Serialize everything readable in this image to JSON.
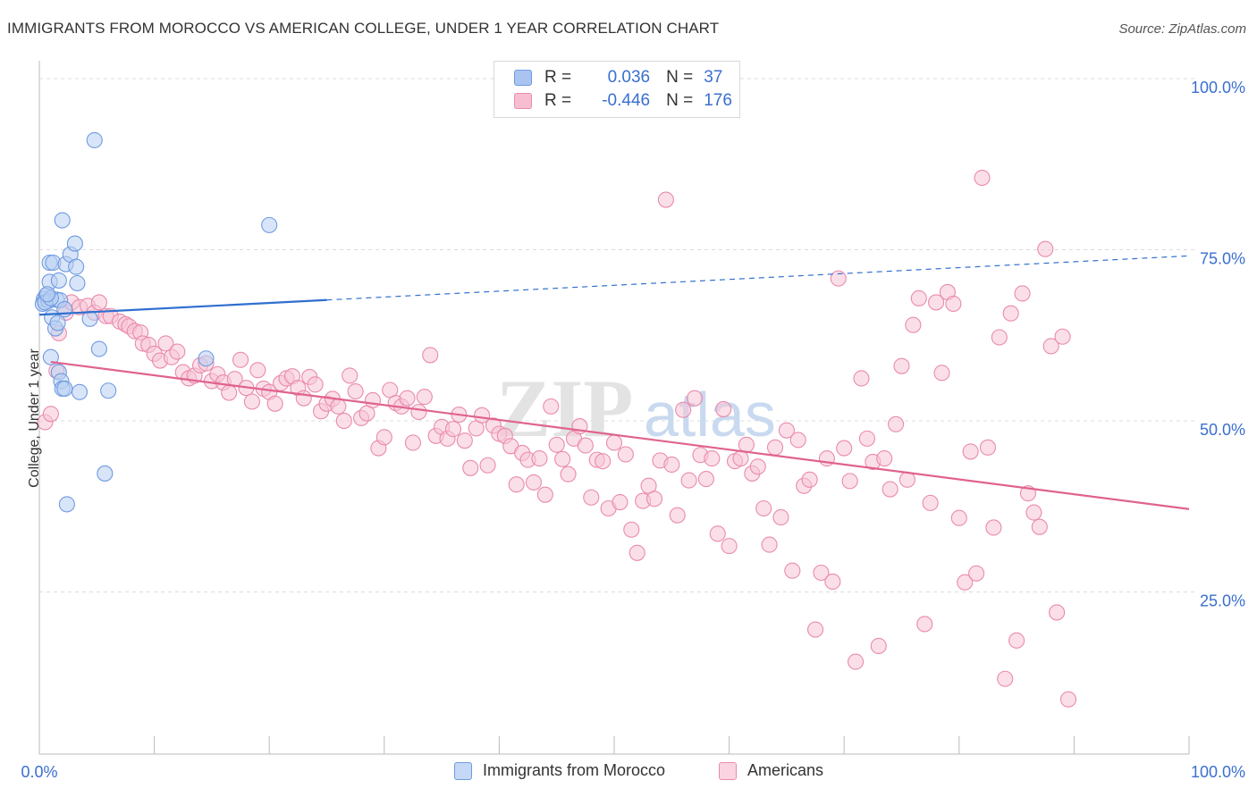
{
  "header": {
    "title": "IMMIGRANTS FROM MOROCCO VS AMERICAN COLLEGE, UNDER 1 YEAR CORRELATION CHART",
    "source": "Source: ZipAtlas.com"
  },
  "watermark": {
    "zip": "ZIP",
    "atlas": "atlas"
  },
  "legend": {
    "rows": [
      {
        "r_label": "R =",
        "r_value": "0.036",
        "n_label": "N =",
        "n_value": "37",
        "color": "#a9c4f0",
        "border": "#6f9ae0"
      },
      {
        "r_label": "R =",
        "r_value": "-0.446",
        "n_label": "N =",
        "n_value": "176",
        "color": "#f7bed2",
        "border": "#e98aae"
      }
    ]
  },
  "bottom_legend": [
    {
      "label": "Immigrants from Morocco",
      "color": "#c5d8f6",
      "border": "#6f9ae0"
    },
    {
      "label": "Americans",
      "color": "#fbd3e1",
      "border": "#e98aae"
    }
  ],
  "chart_data": {
    "type": "scatter",
    "xlabel": "",
    "ylabel": "College, Under 1 year",
    "xlim": [
      0,
      100
    ],
    "ylim": [
      0,
      100
    ],
    "x_tick_labels": [
      "0.0%",
      "100.0%"
    ],
    "y_tick_labels": [
      "25.0%",
      "50.0%",
      "75.0%",
      "100.0%"
    ],
    "y_ticks": [
      25,
      50,
      75,
      100
    ],
    "grid": true,
    "series": [
      {
        "name": "Immigrants from Morocco",
        "color": "#6f9ae0",
        "fill": "#b8cff3",
        "trend_color": "#2f6fcf",
        "trend": {
          "x0": 0.0,
          "y0": 64.2,
          "x1": 100.0,
          "y1": 72.8,
          "solid_until": 25.0
        },
        "points": [
          [
            0.4,
            66.5
          ],
          [
            0.6,
            67.0
          ],
          [
            0.3,
            65.8
          ],
          [
            0.8,
            66.2
          ],
          [
            0.9,
            71.8
          ],
          [
            1.2,
            71.8
          ],
          [
            0.9,
            69.0
          ],
          [
            1.1,
            63.8
          ],
          [
            1.5,
            66.4
          ],
          [
            1.4,
            62.2
          ],
          [
            1.7,
            69.2
          ],
          [
            1.8,
            66.3
          ],
          [
            2.0,
            78.0
          ],
          [
            2.2,
            65.0
          ],
          [
            2.3,
            71.6
          ],
          [
            2.7,
            73.0
          ],
          [
            3.2,
            71.2
          ],
          [
            3.1,
            74.6
          ],
          [
            3.3,
            68.8
          ],
          [
            1.7,
            55.8
          ],
          [
            1.9,
            54.5
          ],
          [
            2.0,
            53.4
          ],
          [
            2.2,
            53.4
          ],
          [
            1.0,
            58.0
          ],
          [
            3.5,
            52.9
          ],
          [
            4.4,
            63.6
          ],
          [
            5.2,
            59.2
          ],
          [
            4.8,
            89.7
          ],
          [
            5.7,
            41.0
          ],
          [
            6.0,
            53.1
          ],
          [
            2.4,
            36.5
          ],
          [
            14.5,
            57.8
          ],
          [
            20.0,
            77.3
          ],
          [
            0.5,
            66.0
          ],
          [
            1.0,
            66.6
          ],
          [
            1.6,
            63.0
          ],
          [
            0.7,
            67.2
          ]
        ]
      },
      {
        "name": "Americans",
        "color": "#e98aae",
        "fill": "#f7c4d6",
        "trend_color": "#e0628f",
        "trend": {
          "x0": 1.0,
          "y0": 57.3,
          "x1": 100.0,
          "y1": 35.8
        },
        "points": [
          [
            0.5,
            48.5
          ],
          [
            1.0,
            49.7
          ],
          [
            1.5,
            56.0
          ],
          [
            1.7,
            61.5
          ],
          [
            2.3,
            64.5
          ],
          [
            2.8,
            66.0
          ],
          [
            3.5,
            65.3
          ],
          [
            4.2,
            65.5
          ],
          [
            4.8,
            64.5
          ],
          [
            5.2,
            66.0
          ],
          [
            5.8,
            64.0
          ],
          [
            6.2,
            64.0
          ],
          [
            7.0,
            63.2
          ],
          [
            7.5,
            62.8
          ],
          [
            7.8,
            62.5
          ],
          [
            8.3,
            61.8
          ],
          [
            8.8,
            61.6
          ],
          [
            9.0,
            60.0
          ],
          [
            9.5,
            59.8
          ],
          [
            10.0,
            58.5
          ],
          [
            10.5,
            57.5
          ],
          [
            11.0,
            60.0
          ],
          [
            11.5,
            58.0
          ],
          [
            12.0,
            58.8
          ],
          [
            12.5,
            55.8
          ],
          [
            13.0,
            54.9
          ],
          [
            13.5,
            55.3
          ],
          [
            14.0,
            56.8
          ],
          [
            14.5,
            57.1
          ],
          [
            15.0,
            54.5
          ],
          [
            15.5,
            55.5
          ],
          [
            16.0,
            54.3
          ],
          [
            16.5,
            52.8
          ],
          [
            17.0,
            54.8
          ],
          [
            17.5,
            57.6
          ],
          [
            18.0,
            53.5
          ],
          [
            18.5,
            51.5
          ],
          [
            19.0,
            56.1
          ],
          [
            19.5,
            53.4
          ],
          [
            20.0,
            52.9
          ],
          [
            20.5,
            51.2
          ],
          [
            21.0,
            54.2
          ],
          [
            21.5,
            54.9
          ],
          [
            22.0,
            55.2
          ],
          [
            22.5,
            53.5
          ],
          [
            23.0,
            52.0
          ],
          [
            23.5,
            55.1
          ],
          [
            24.0,
            54.0
          ],
          [
            24.5,
            50.1
          ],
          [
            25.0,
            51.2
          ],
          [
            25.5,
            51.9
          ],
          [
            26.0,
            50.8
          ],
          [
            26.5,
            48.7
          ],
          [
            27.0,
            55.3
          ],
          [
            27.5,
            53.0
          ],
          [
            28.0,
            49.1
          ],
          [
            28.5,
            49.8
          ],
          [
            29.0,
            51.7
          ],
          [
            29.5,
            44.7
          ],
          [
            30.0,
            46.3
          ],
          [
            30.5,
            53.2
          ],
          [
            31.0,
            51.3
          ],
          [
            31.5,
            50.8
          ],
          [
            32.0,
            52.0
          ],
          [
            32.5,
            45.5
          ],
          [
            33.0,
            50.0
          ],
          [
            33.5,
            52.2
          ],
          [
            34.0,
            58.3
          ],
          [
            34.5,
            46.5
          ],
          [
            35.0,
            47.8
          ],
          [
            35.5,
            46.1
          ],
          [
            36.0,
            47.5
          ],
          [
            36.5,
            49.6
          ],
          [
            37.0,
            45.8
          ],
          [
            37.5,
            41.8
          ],
          [
            38.0,
            47.6
          ],
          [
            38.5,
            49.5
          ],
          [
            39.0,
            42.2
          ],
          [
            39.5,
            48.0
          ],
          [
            40.0,
            46.8
          ],
          [
            40.5,
            46.5
          ],
          [
            41.0,
            45.0
          ],
          [
            41.5,
            39.4
          ],
          [
            42.0,
            44.0
          ],
          [
            42.5,
            43.0
          ],
          [
            43.0,
            39.7
          ],
          [
            43.5,
            43.2
          ],
          [
            44.0,
            37.9
          ],
          [
            44.5,
            50.8
          ],
          [
            45.0,
            45.2
          ],
          [
            45.5,
            43.1
          ],
          [
            46.0,
            40.9
          ],
          [
            46.5,
            46.1
          ],
          [
            47.0,
            47.9
          ],
          [
            47.5,
            45.1
          ],
          [
            48.0,
            37.5
          ],
          [
            48.5,
            43.0
          ],
          [
            49.0,
            42.8
          ],
          [
            49.5,
            35.9
          ],
          [
            50.0,
            45.5
          ],
          [
            50.5,
            36.8
          ],
          [
            51.0,
            43.8
          ],
          [
            51.5,
            32.8
          ],
          [
            52.0,
            29.4
          ],
          [
            52.5,
            37.0
          ],
          [
            53.0,
            39.2
          ],
          [
            53.5,
            37.3
          ],
          [
            54.0,
            42.9
          ],
          [
            54.5,
            81.0
          ],
          [
            55.0,
            42.3
          ],
          [
            55.5,
            34.9
          ],
          [
            56.0,
            50.3
          ],
          [
            56.5,
            40.0
          ],
          [
            57.0,
            52.0
          ],
          [
            57.5,
            43.7
          ],
          [
            58.0,
            40.2
          ],
          [
            58.5,
            43.2
          ],
          [
            59.0,
            32.2
          ],
          [
            59.5,
            50.4
          ],
          [
            60.0,
            30.4
          ],
          [
            60.5,
            42.8
          ],
          [
            61.0,
            43.2
          ],
          [
            61.5,
            45.2
          ],
          [
            62.0,
            41.0
          ],
          [
            62.5,
            42.0
          ],
          [
            63.0,
            35.9
          ],
          [
            63.5,
            30.6
          ],
          [
            64.0,
            44.8
          ],
          [
            64.5,
            34.6
          ],
          [
            65.0,
            47.3
          ],
          [
            65.5,
            26.8
          ],
          [
            66.0,
            45.9
          ],
          [
            66.5,
            39.2
          ],
          [
            67.0,
            40.1
          ],
          [
            67.5,
            18.2
          ],
          [
            68.0,
            26.5
          ],
          [
            68.5,
            43.2
          ],
          [
            69.0,
            25.2
          ],
          [
            69.5,
            69.5
          ],
          [
            70.0,
            44.7
          ],
          [
            70.5,
            39.9
          ],
          [
            71.0,
            13.5
          ],
          [
            71.5,
            54.9
          ],
          [
            72.0,
            46.1
          ],
          [
            72.5,
            42.7
          ],
          [
            73.0,
            15.8
          ],
          [
            73.5,
            43.2
          ],
          [
            74.0,
            38.7
          ],
          [
            74.5,
            48.2
          ],
          [
            75.0,
            56.7
          ],
          [
            75.5,
            40.1
          ],
          [
            76.0,
            62.7
          ],
          [
            76.5,
            66.6
          ],
          [
            77.0,
            19.0
          ],
          [
            77.5,
            36.7
          ],
          [
            78.0,
            66.0
          ],
          [
            78.5,
            55.7
          ],
          [
            79.0,
            67.5
          ],
          [
            79.5,
            65.8
          ],
          [
            80.0,
            34.5
          ],
          [
            80.5,
            25.1
          ],
          [
            81.0,
            44.2
          ],
          [
            81.5,
            26.4
          ],
          [
            82.0,
            84.2
          ],
          [
            82.5,
            44.8
          ],
          [
            83.0,
            33.1
          ],
          [
            83.5,
            60.9
          ],
          [
            84.0,
            11.0
          ],
          [
            84.5,
            64.4
          ],
          [
            85.0,
            16.6
          ],
          [
            85.5,
            67.3
          ],
          [
            86.0,
            38.1
          ],
          [
            86.5,
            35.3
          ],
          [
            87.0,
            33.2
          ],
          [
            87.5,
            73.8
          ],
          [
            88.0,
            59.6
          ],
          [
            88.5,
            20.7
          ],
          [
            89.0,
            61.0
          ],
          [
            89.5,
            8.0
          ]
        ]
      }
    ]
  }
}
